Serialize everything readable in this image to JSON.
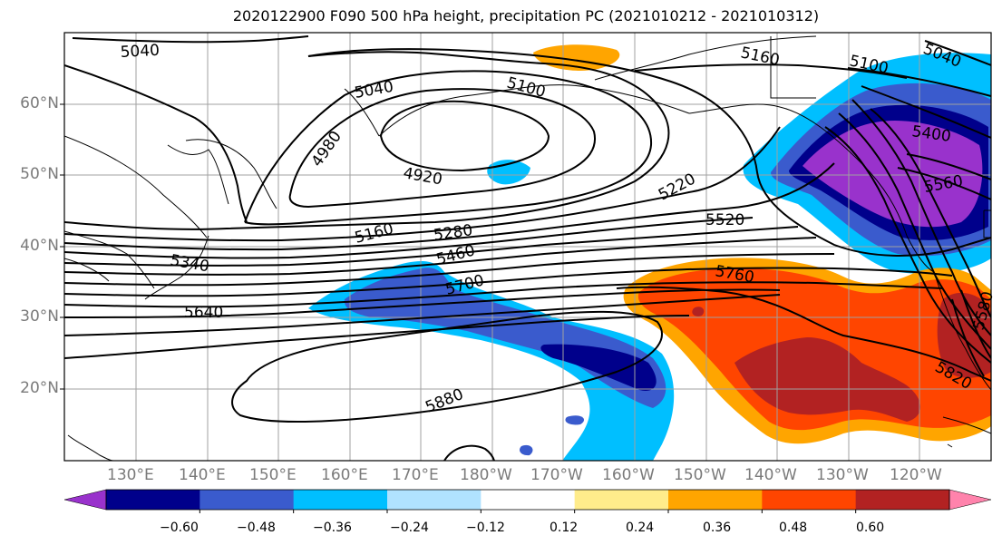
{
  "title": "2020122900 F090 500 hPa height, precipitation PC (2021010212 - 2021010312)",
  "lat_labels": [
    "60°N",
    "50°N",
    "40°N",
    "30°N",
    "20°N"
  ],
  "lon_labels": [
    "130°E",
    "140°E",
    "150°E",
    "160°E",
    "170°E",
    "180°W",
    "170°W",
    "160°W",
    "150°W",
    "140°W",
    "130°W",
    "120°W"
  ],
  "contour_labels": [
    "5040",
    "5040",
    "4980",
    "4920",
    "5100",
    "5160",
    "5100",
    "5040",
    "5220",
    "5160",
    "5280",
    "5460",
    "5340",
    "5700",
    "5640",
    "5520",
    "5760",
    "5880",
    "5820",
    "5580",
    "5400",
    "5560"
  ],
  "colorbar": {
    "ticks": [
      "−0.60",
      "−0.48",
      "−0.36",
      "−0.24",
      "−0.12",
      "0.12",
      "0.24",
      "0.36",
      "0.48",
      "0.60"
    ],
    "colors": [
      "#9932cc",
      "#00008b",
      "#3a5bcd",
      "#00bfff",
      "#b0e2ff",
      "#ffffff",
      "#ffec8b",
      "#ffa500",
      "#ff4500",
      "#b22222",
      "#ff83ac"
    ]
  },
  "colors": {
    "contour": "#000000",
    "coast": "#000000",
    "grid": "#a0a0a0"
  }
}
